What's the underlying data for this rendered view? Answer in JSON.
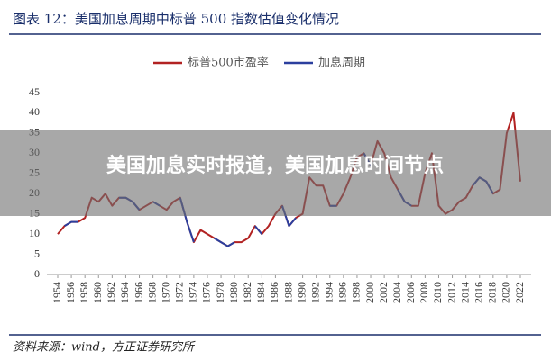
{
  "chart_data": {
    "type": "line",
    "title": "图表 12：美国加息周期中标普 500 指数估值变化情况",
    "source": "资料来源：wind，方正证券研究所",
    "x": [
      1954,
      1955,
      1956,
      1957,
      1958,
      1959,
      1960,
      1961,
      1962,
      1963,
      1964,
      1965,
      1966,
      1967,
      1968,
      1969,
      1970,
      1971,
      1972,
      1973,
      1974,
      1975,
      1976,
      1977,
      1978,
      1979,
      1980,
      1981,
      1982,
      1983,
      1984,
      1985,
      1986,
      1987,
      1988,
      1989,
      1990,
      1991,
      1992,
      1993,
      1994,
      1995,
      1996,
      1997,
      1998,
      1999,
      2000,
      2001,
      2002,
      2003,
      2004,
      2005,
      2006,
      2007,
      2008,
      2009,
      2010,
      2011,
      2012,
      2013,
      2014,
      2015,
      2016,
      2017,
      2018,
      2019,
      2020,
      2021,
      2022
    ],
    "series": [
      {
        "name": "标普500市盈率",
        "color": "#b22222",
        "values": [
          10,
          12,
          13,
          13,
          14,
          19,
          18,
          20,
          17,
          19,
          19,
          18,
          16,
          17,
          18,
          17,
          16,
          18,
          19,
          13,
          8,
          11,
          10,
          9,
          8,
          7,
          8,
          8,
          9,
          12,
          10,
          12,
          15,
          17,
          12,
          14,
          15,
          24,
          22,
          22,
          17,
          17,
          20,
          24,
          29,
          30,
          27,
          33,
          30,
          24,
          21,
          18,
          17,
          17,
          25,
          30,
          17,
          15,
          16,
          18,
          19,
          22,
          24,
          23,
          20,
          21,
          35,
          40,
          23
        ]
      },
      {
        "name": "加息周期",
        "color": "#2b3f9e",
        "values": [
          null,
          12,
          13,
          13,
          null,
          19,
          null,
          null,
          null,
          19,
          19,
          18,
          16,
          null,
          18,
          17,
          null,
          null,
          19,
          13,
          8,
          null,
          null,
          9,
          8,
          7,
          8,
          null,
          null,
          12,
          10,
          null,
          null,
          17,
          12,
          14,
          null,
          null,
          null,
          null,
          17,
          17,
          null,
          null,
          null,
          30,
          27,
          null,
          null,
          null,
          21,
          18,
          17,
          null,
          null,
          null,
          null,
          null,
          null,
          null,
          null,
          22,
          24,
          23,
          20,
          null,
          null,
          null,
          null
        ]
      }
    ],
    "ylim": [
      0,
      45
    ],
    "yticks": [
      0,
      5,
      10,
      15,
      20,
      25,
      30,
      35,
      40,
      45
    ],
    "xlim": [
      1954,
      2022
    ],
    "xticks": [
      1954,
      1956,
      1958,
      1960,
      1962,
      1964,
      1966,
      1968,
      1970,
      1972,
      1974,
      1976,
      1978,
      1980,
      1982,
      1984,
      1986,
      1988,
      1990,
      1992,
      1994,
      1996,
      1998,
      2000,
      2002,
      2004,
      2006,
      2008,
      2010,
      2012,
      2014,
      2016,
      2018,
      2020,
      2022
    ],
    "legend": "top"
  },
  "banner": "美国加息实时报道，美国加息时间节点"
}
